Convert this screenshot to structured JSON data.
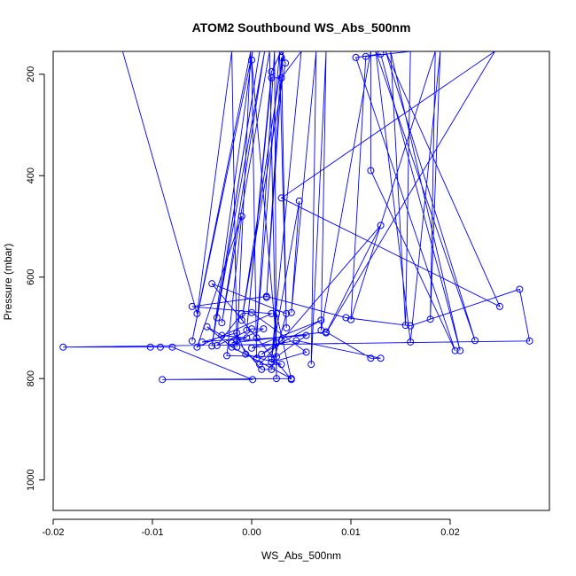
{
  "chart_data": {
    "type": "scatter",
    "title": "ATOM2 Southbound WS_Abs_500nm",
    "xlabel": "WS_Abs_500nm",
    "ylabel": "Pressure (mbar)",
    "xlim": [
      -0.02,
      0.03
    ],
    "ylim": [
      1060,
      155
    ],
    "y_reversed": true,
    "grid": false,
    "legend": "none",
    "x_ticks": [
      -0.02,
      -0.01,
      0.0,
      0.01,
      0.02
    ],
    "x_tick_labels": [
      "-0.02",
      "-0.01",
      "0.00",
      "0.01",
      "0.02"
    ],
    "y_ticks": [
      200,
      400,
      600,
      800,
      1000
    ],
    "y_tick_labels": [
      "200",
      "400",
      "600",
      "800",
      "1000"
    ],
    "series": [
      {
        "color": "#0000ff",
        "marker": "open-circle",
        "connect": "line",
        "points": [
          [
            -0.013,
            155
          ],
          [
            -0.0055,
            672
          ],
          [
            -0.002,
            155
          ],
          [
            -0.0015,
            738
          ],
          [
            -0.0001,
            155
          ],
          [
            -0.006,
            726
          ],
          [
            0.0001,
            155
          ],
          [
            -0.004,
            736
          ],
          [
            0.0008,
            155
          ],
          [
            -0.0035,
            680
          ],
          [
            0.0013,
            155
          ],
          [
            -0.003,
            690
          ],
          [
            0.0018,
            155
          ],
          [
            0.0025,
            800
          ],
          [
            0.0023,
            155
          ],
          [
            0.0005,
            720
          ],
          [
            0.0028,
            155
          ],
          [
            0.0035,
            700
          ],
          [
            0.003,
            167
          ],
          [
            0.0015,
            640
          ],
          [
            0.0032,
            155
          ],
          [
            -0.001,
            685
          ],
          [
            0.0034,
            178
          ],
          [
            0.003,
            155
          ],
          [
            0.002,
            195
          ],
          [
            -0.0005,
            705
          ],
          [
            0.002,
            207
          ],
          [
            0.003,
            207
          ],
          [
            0.005,
            155
          ],
          [
            0.002,
            760
          ],
          [
            0.0048,
            450
          ],
          [
            0.004,
            670
          ],
          [
            0.0065,
            155
          ],
          [
            0.006,
            772
          ],
          [
            0.0075,
            155
          ],
          [
            0.007,
            705
          ],
          [
            0.012,
            155
          ],
          [
            0.012,
            390
          ],
          [
            0.0205,
            745
          ],
          [
            0.0105,
            167
          ],
          [
            0.013,
            160
          ],
          [
            0.021,
            745
          ],
          [
            0.014,
            155
          ],
          [
            0.0155,
            695
          ],
          [
            0.016,
            155
          ],
          [
            0.0115,
            165
          ],
          [
            0.01,
            684
          ],
          [
            0.0185,
            155
          ],
          [
            0.018,
            683
          ],
          [
            0.019,
            155
          ],
          [
            0.016,
            728
          ],
          [
            0.0125,
            155
          ],
          [
            0.0225,
            725
          ],
          [
            0.0135,
            155
          ],
          [
            0.025,
            658
          ],
          [
            0.003,
            444
          ],
          [
            0.0245,
            155
          ],
          [
            0.0075,
            710
          ],
          [
            0.013,
            498
          ],
          [
            0.003,
            725
          ],
          [
            0.0008,
            772
          ],
          [
            0.003,
            772
          ],
          [
            -0.0006,
            752
          ],
          [
            -0.0015,
            710
          ],
          [
            -0.005,
            728
          ],
          [
            -0.0005,
            720
          ],
          [
            -0.003,
            715
          ],
          [
            -0.0045,
            698
          ],
          [
            -0.002,
            738
          ],
          [
            0.004,
            800
          ],
          [
            -0.009,
            802
          ],
          [
            0.0001,
            802
          ],
          [
            -0.008,
            738
          ],
          [
            -0.0092,
            738
          ],
          [
            -0.0102,
            738
          ],
          [
            -0.019,
            738
          ],
          [
            0.028,
            726
          ],
          [
            0.027,
            624
          ],
          [
            0.016,
            696
          ],
          [
            0.0095,
            680
          ],
          [
            0.0015,
            638
          ],
          [
            -0.006,
            658
          ],
          [
            0.002,
            672
          ],
          [
            -0.0055,
            738
          ],
          [
            -0.001,
            480
          ],
          [
            -0.0025,
            755
          ],
          [
            0.0025,
            757
          ],
          [
            0.0055,
            715
          ],
          [
            -0.0015,
            725
          ],
          [
            0.001,
            782
          ],
          [
            0.002,
            782
          ],
          [
            0.0035,
            672
          ],
          [
            -0.004,
            613
          ],
          [
            0.004,
            802
          ],
          [
            0.0025,
            672
          ],
          [
            0.002,
            768
          ],
          [
            0.0055,
            748
          ],
          [
            0.0,
            670
          ],
          [
            -0.001,
            672
          ],
          [
            -0.0035,
            735
          ],
          [
            0.0,
            702
          ],
          [
            0.0012,
            702
          ],
          [
            -0.002,
            730
          ],
          [
            0.0075,
            708
          ],
          [
            0.012,
            760
          ],
          [
            0.013,
            760
          ],
          [
            0.0045,
            725
          ],
          [
            0.0,
            740
          ],
          [
            0.007,
            685
          ],
          [
            0.001,
            752
          ],
          [
            0.0025,
            730
          ],
          [
            0.0,
            172
          ],
          [
            0.0005,
            760
          ]
        ]
      }
    ]
  }
}
